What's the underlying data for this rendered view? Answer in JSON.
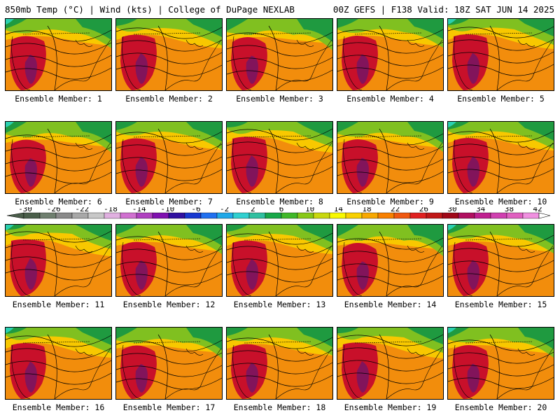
{
  "header": {
    "left": "850mb Temp (°C) | Wind (kts) | College of DuPage NEXLAB",
    "right": "00Z GEFS | F138 Valid: 18Z SAT JUN 14 2025"
  },
  "member_label_prefix": "Ensemble Member: ",
  "members": [
    1,
    2,
    3,
    4,
    5,
    6,
    7,
    8,
    9,
    10,
    11,
    12,
    13,
    14,
    15,
    16,
    17,
    18,
    19,
    20
  ],
  "colorbar": {
    "tick_labels": [
      "-30",
      "-26",
      "-22",
      "-18",
      "-14",
      "-10",
      "-6",
      "-2",
      "2",
      "6",
      "10",
      "14",
      "18",
      "22",
      "26",
      "30",
      "34",
      "38",
      "42"
    ],
    "colors": [
      "#4a5e4a",
      "#6f7f6f",
      "#8a8a8a",
      "#a8a8a8",
      "#c8c8c8",
      "#e0b0e0",
      "#d070d0",
      "#b040c0",
      "#8010b0",
      "#3010a0",
      "#1838d0",
      "#2070f0",
      "#20a8e8",
      "#30d0d0",
      "#30c0a0",
      "#18a848",
      "#40b828",
      "#88c818",
      "#c8d810",
      "#f8f800",
      "#f8d000",
      "#f8a800",
      "#f88000",
      "#f05810",
      "#e02020",
      "#c01818",
      "#a00818",
      "#b01060",
      "#c02090",
      "#d040b0",
      "#e060c0",
      "#f090e0"
    ]
  },
  "colors": {
    "hot_core": "#7a1560",
    "hot": "#c8102a",
    "warm": "#f07a10",
    "mild": "#f8c800",
    "cool": "#80c020",
    "cold": "#1f9a40",
    "coldest": "#2ad0b0",
    "contour": "#000000"
  }
}
